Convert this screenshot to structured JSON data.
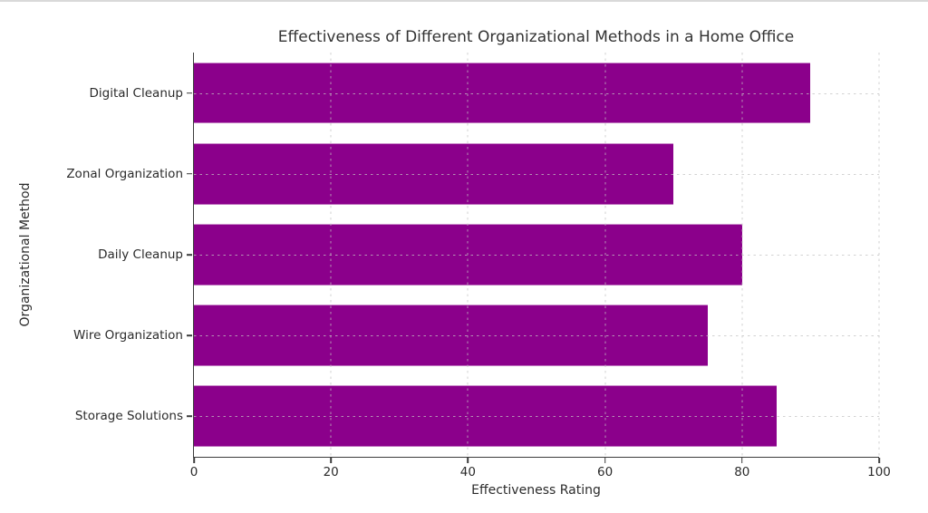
{
  "chart_data": {
    "type": "bar",
    "orientation": "horizontal",
    "title": "Effectiveness of Different Organizational Methods in a Home Office",
    "xlabel": "Effectiveness Rating",
    "ylabel": "Organizational Method",
    "categories": [
      "Digital Cleanup",
      "Zonal Organization",
      "Daily Cleanup",
      "Wire Organization",
      "Storage Solutions"
    ],
    "values": [
      90,
      70,
      80,
      75,
      85
    ],
    "xlim": [
      0,
      100
    ],
    "xticks": [
      "0",
      "20",
      "40",
      "60",
      "80",
      "100"
    ],
    "xtick_values": [
      0,
      20,
      40,
      60,
      80,
      100
    ],
    "grid": "dashed, drawn over bars",
    "legend": "none",
    "bar_color": "#8B008B",
    "spine_color": "#3c3c3c"
  }
}
